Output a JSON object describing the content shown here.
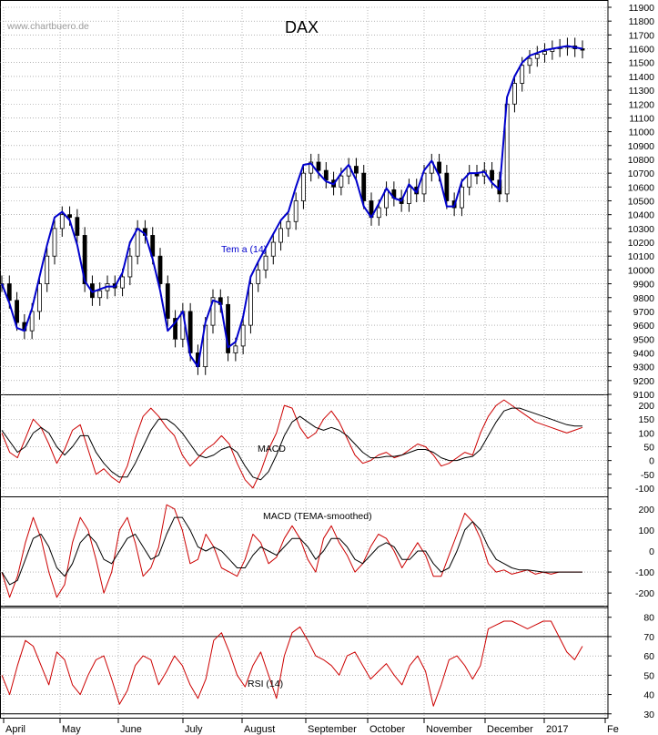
{
  "chart_data": {
    "type": "line",
    "title": "DAX",
    "watermark": "www.chartbuero.de",
    "months": [
      "April",
      "May",
      "June",
      "July",
      "August",
      "September",
      "October",
      "November",
      "December",
      "2017",
      "Fe"
    ],
    "colors": {
      "price": "#000000",
      "tema": "#0000cc",
      "indicator": "#cc0000",
      "signal": "#000000"
    },
    "panels": [
      {
        "name": "price",
        "ylim": [
          9100,
          11900
        ],
        "ticks": [
          9100,
          9200,
          9300,
          9400,
          9500,
          9600,
          9700,
          9800,
          9900,
          10000,
          10100,
          10200,
          10300,
          10400,
          10500,
          10600,
          10700,
          10800,
          10900,
          11000,
          11100,
          11200,
          11300,
          11400,
          11500,
          11600,
          11700,
          11800,
          11900
        ],
        "label": "Tem a (14)",
        "close": [
          9900,
          9780,
          9620,
          9560,
          9700,
          9900,
          10100,
          10300,
          10400,
          10380,
          10250,
          9900,
          9800,
          9850,
          9900,
          9870,
          9950,
          10100,
          10300,
          10250,
          10100,
          9900,
          9650,
          9500,
          9700,
          9400,
          9300,
          9600,
          9800,
          9750,
          9400,
          9450,
          9600,
          9900,
          10000,
          10100,
          10200,
          10300,
          10350,
          10500,
          10700,
          10780,
          10720,
          10650,
          10600,
          10680,
          10750,
          10700,
          10500,
          10380,
          10450,
          10580,
          10520,
          10480,
          10600,
          10550,
          10700,
          10780,
          10700,
          10500,
          10450,
          10600,
          10700,
          10680,
          10720,
          10650,
          10550,
          11200,
          11350,
          11480,
          11530,
          11560,
          11580,
          11600,
          11610,
          11620,
          11600,
          11590
        ],
        "tema": [
          9900,
          9760,
          9580,
          9560,
          9720,
          9950,
          10180,
          10380,
          10420,
          10360,
          10180,
          9920,
          9840,
          9860,
          9880,
          9880,
          9980,
          10200,
          10300,
          10260,
          10080,
          9850,
          9560,
          9620,
          9700,
          9380,
          9300,
          9620,
          9780,
          9760,
          9440,
          9480,
          9660,
          9950,
          10060,
          10160,
          10260,
          10360,
          10420,
          10600,
          10760,
          10770,
          10700,
          10640,
          10620,
          10700,
          10760,
          10650,
          10460,
          10380,
          10480,
          10590,
          10520,
          10500,
          10620,
          10560,
          10720,
          10790,
          10680,
          10460,
          10460,
          10640,
          10700,
          10700,
          10710,
          10630,
          10580,
          11250,
          11400,
          11500,
          11550,
          11570,
          11590,
          11600,
          11610,
          11620,
          11610,
          11600
        ]
      },
      {
        "name": "macd",
        "label": "MACD",
        "ylim": [
          -130,
          240
        ],
        "ticks": [
          -100,
          -50,
          0,
          50,
          100,
          150,
          200
        ],
        "macd": [
          100,
          30,
          10,
          80,
          150,
          120,
          60,
          -10,
          40,
          110,
          130,
          40,
          -50,
          -30,
          -60,
          -80,
          -20,
          80,
          160,
          190,
          160,
          120,
          90,
          20,
          -20,
          10,
          40,
          60,
          90,
          60,
          -10,
          -70,
          -100,
          -40,
          40,
          100,
          200,
          190,
          120,
          80,
          100,
          150,
          180,
          140,
          80,
          20,
          -10,
          0,
          20,
          30,
          10,
          20,
          40,
          60,
          50,
          20,
          -20,
          -10,
          10,
          30,
          20,
          100,
          160,
          200,
          220,
          200,
          180,
          160,
          140,
          130,
          120,
          110,
          100,
          110,
          120
        ],
        "signal": [
          110,
          70,
          30,
          50,
          100,
          120,
          100,
          50,
          20,
          50,
          90,
          90,
          30,
          -10,
          -40,
          -60,
          -60,
          -10,
          50,
          110,
          150,
          150,
          130,
          100,
          60,
          20,
          10,
          20,
          40,
          50,
          30,
          -20,
          -60,
          -70,
          -40,
          20,
          90,
          140,
          160,
          140,
          120,
          110,
          120,
          110,
          90,
          60,
          30,
          10,
          10,
          15,
          15,
          20,
          30,
          40,
          40,
          30,
          10,
          0,
          0,
          10,
          15,
          40,
          90,
          140,
          180,
          190,
          190,
          180,
          170,
          160,
          150,
          140,
          130,
          125,
          125
        ],
        "label_pos": "upper-middle"
      },
      {
        "name": "macd-tema",
        "label": "MACD (TEMA-smoothed)",
        "ylim": [
          -260,
          260
        ],
        "ticks": [
          -200,
          -100,
          0,
          100,
          200
        ],
        "macd": [
          -100,
          -220,
          -120,
          40,
          160,
          60,
          -100,
          -220,
          -160,
          40,
          160,
          100,
          -40,
          -200,
          -100,
          100,
          160,
          40,
          -120,
          -80,
          20,
          220,
          200,
          100,
          -60,
          -40,
          80,
          20,
          -80,
          -100,
          -120,
          -40,
          80,
          40,
          -60,
          -30,
          60,
          120,
          60,
          -40,
          -100,
          60,
          120,
          40,
          -20,
          -100,
          -60,
          20,
          80,
          60,
          0,
          -80,
          -20,
          40,
          -20,
          -120,
          -120,
          -20,
          80,
          180,
          140,
          60,
          -60,
          -100,
          -90,
          -110,
          -100,
          -90,
          -110,
          -100,
          -110,
          -100,
          -100,
          -100,
          -100
        ],
        "signal": [
          -100,
          -160,
          -140,
          -40,
          60,
          80,
          20,
          -80,
          -120,
          -60,
          40,
          80,
          40,
          -40,
          -60,
          0,
          60,
          80,
          20,
          -40,
          -20,
          80,
          160,
          160,
          100,
          20,
          0,
          20,
          0,
          -40,
          -80,
          -80,
          -20,
          20,
          0,
          -20,
          20,
          60,
          60,
          20,
          -40,
          0,
          60,
          60,
          20,
          -40,
          -60,
          -20,
          20,
          40,
          20,
          -40,
          -40,
          0,
          0,
          -60,
          -100,
          -80,
          0,
          100,
          140,
          100,
          20,
          -40,
          -60,
          -80,
          -90,
          -90,
          -95,
          -100,
          -100,
          -100,
          -100,
          -100,
          -100
        ],
        "label_pos": "upper-middle"
      },
      {
        "name": "rsi",
        "label": "RSI (14)",
        "ylim": [
          28,
          86
        ],
        "ticks": [
          30,
          40,
          50,
          60,
          70,
          80
        ],
        "ref_lines": [
          85,
          70,
          30
        ],
        "values": [
          50,
          40,
          55,
          68,
          65,
          55,
          45,
          62,
          58,
          45,
          40,
          50,
          58,
          60,
          48,
          35,
          42,
          55,
          60,
          58,
          45,
          52,
          60,
          55,
          45,
          38,
          48,
          68,
          72,
          62,
          50,
          44,
          55,
          62,
          50,
          38,
          60,
          72,
          75,
          68,
          60,
          58,
          55,
          50,
          60,
          62,
          55,
          48,
          52,
          56,
          50,
          45,
          55,
          60,
          52,
          34,
          45,
          58,
          60,
          55,
          48,
          55,
          74,
          76,
          78,
          78,
          76,
          74,
          76,
          78,
          78,
          70,
          62,
          58,
          65
        ]
      }
    ]
  }
}
